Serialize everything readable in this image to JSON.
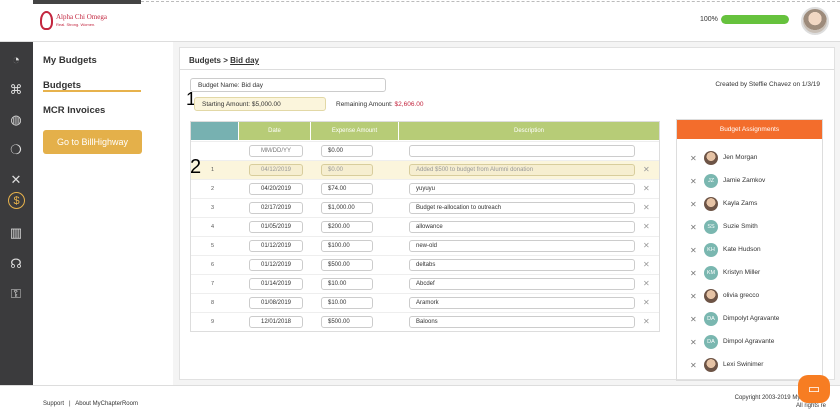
{
  "brand": {
    "name": "Alpha Chi Omega",
    "tagline": "Real. Strong. Women."
  },
  "header": {
    "progress_label": "100%",
    "progress_value": 1.0
  },
  "leftbar": {
    "icons": [
      "gauge-icon",
      "network-icon",
      "globe-icon",
      "chat-bubbles-icon",
      "strategy-icon",
      "dollar-icon",
      "books-icon",
      "headset-icon",
      "key-icon"
    ]
  },
  "sidebar": {
    "items": [
      {
        "label": "My Budgets"
      },
      {
        "label": "Budgets"
      },
      {
        "label": "MCR Invoices"
      }
    ],
    "button": "Go to BillHighway"
  },
  "main": {
    "breadcrumb_root": "Budgets >",
    "breadcrumb_current": "Bid day",
    "budget_name": "Budget Name:  Bid day",
    "starting_amount": "Starting Amount:  $5,000.00",
    "remaining_label": "Remaining Amount:",
    "remaining_value": "$2,606.00",
    "created_by": "Created by Steffie Chavez on 1/3/19",
    "annotation_1": "1",
    "annotation_2": "2",
    "table": {
      "headers": [
        "",
        "Date",
        "Expense Amount",
        "Description"
      ],
      "new_row": {
        "date_placeholder": "MM/DD/YY",
        "amount": "$0.00",
        "description": ""
      },
      "rows": [
        {
          "num": "1",
          "date": "04/12/2019",
          "amount": "$0.00",
          "description": "Added $500 to budget from Alumni donation"
        },
        {
          "num": "2",
          "date": "04/20/2019",
          "amount": "$74.00",
          "description": "yuyuyu"
        },
        {
          "num": "3",
          "date": "02/17/2019",
          "amount": "$1,000.00",
          "description": "Budget re-allocation to outreach"
        },
        {
          "num": "4",
          "date": "01/05/2019",
          "amount": "$200.00",
          "description": "allowance"
        },
        {
          "num": "5",
          "date": "01/12/2019",
          "amount": "$100.00",
          "description": "new-old"
        },
        {
          "num": "6",
          "date": "01/12/2019",
          "amount": "$500.00",
          "description": "deltabs"
        },
        {
          "num": "7",
          "date": "01/14/2019",
          "amount": "$10.00",
          "description": "Abcdef"
        },
        {
          "num": "8",
          "date": "01/08/2019",
          "amount": "$10.00",
          "description": "Aramork"
        },
        {
          "num": "9",
          "date": "12/01/2018",
          "amount": "$500.00",
          "description": "Baloons"
        }
      ]
    },
    "assignments": {
      "title": "Budget Assignments",
      "people": [
        {
          "initials": "",
          "name": "Jen Morgan"
        },
        {
          "initials": "JZ",
          "name": "Jamie Zamkov"
        },
        {
          "initials": "",
          "name": "Kayla Zams"
        },
        {
          "initials": "SS",
          "name": "Suzie Smith"
        },
        {
          "initials": "KH",
          "name": "Kate Hudson"
        },
        {
          "initials": "KM",
          "name": "Kristyn Miller"
        },
        {
          "initials": "",
          "name": "olivia grecco"
        },
        {
          "initials": "DA",
          "name": "Dimpolyt Agravante"
        },
        {
          "initials": "DA",
          "name": "Dimpol Agravante"
        },
        {
          "initials": "",
          "name": "Lexi Swinimer"
        }
      ]
    }
  },
  "footer": {
    "support": "Support",
    "about": "About MyChapterRoom",
    "copyright": "Copyright 2003-2019 MyChapterR",
    "rights": "All rights re"
  },
  "colors": {
    "accent": "#e4b04a",
    "brand": "#c3263f",
    "assign_header": "#f36d2c",
    "table_header": "#b7cc77"
  }
}
